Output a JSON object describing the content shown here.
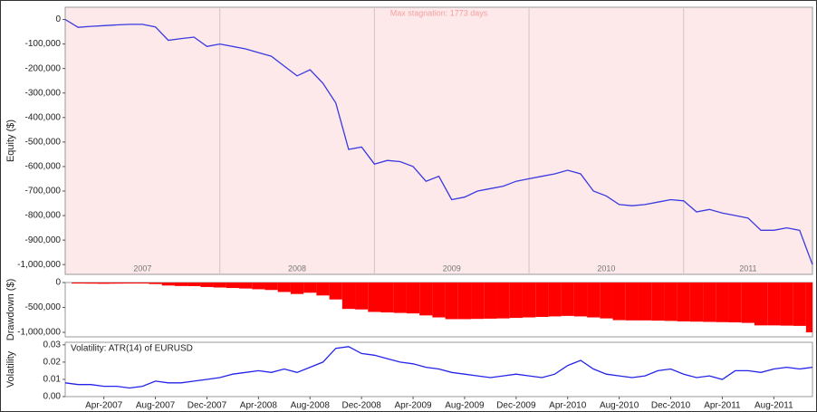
{
  "chart_data": [
    {
      "type": "line",
      "ylabel": "Equity ($)",
      "annotation": "Max stagnation: 1773 days",
      "year_labels": [
        "2007",
        "2008",
        "2009",
        "2010",
        "2011"
      ],
      "x": [
        "Jan-2007",
        "Feb-2007",
        "Mar-2007",
        "Apr-2007",
        "May-2007",
        "Jun-2007",
        "Jul-2007",
        "Aug-2007",
        "Sep-2007",
        "Oct-2007",
        "Nov-2007",
        "Dec-2007",
        "Jan-2008",
        "Feb-2008",
        "Mar-2008",
        "Apr-2008",
        "May-2008",
        "Jun-2008",
        "Jul-2008",
        "Aug-2008",
        "Sep-2008",
        "Oct-2008",
        "Nov-2008",
        "Dec-2008",
        "Jan-2009",
        "Feb-2009",
        "Mar-2009",
        "Apr-2009",
        "May-2009",
        "Jun-2009",
        "Jul-2009",
        "Aug-2009",
        "Sep-2009",
        "Oct-2009",
        "Nov-2009",
        "Dec-2009",
        "Jan-2010",
        "Feb-2010",
        "Mar-2010",
        "Apr-2010",
        "May-2010",
        "Jun-2010",
        "Jul-2010",
        "Aug-2010",
        "Sep-2010",
        "Oct-2010",
        "Nov-2010",
        "Dec-2010",
        "Jan-2011",
        "Feb-2011",
        "Mar-2011",
        "Apr-2011",
        "May-2011",
        "Jun-2011",
        "Jul-2011",
        "Aug-2011",
        "Sep-2011",
        "Oct-2011",
        "Nov-2011"
      ],
      "xlim": [
        "Jan-2007",
        "Nov-2011"
      ],
      "ylim": [
        -1040000,
        50000
      ],
      "yticks": [
        0,
        {
          "value": -100000,
          "label": "-100,000"
        },
        {
          "value": -200000,
          "label": "-200,000"
        },
        {
          "value": -300000,
          "label": "-300,000"
        },
        {
          "value": -400000,
          "label": "-400,000"
        },
        {
          "value": -500000,
          "label": "-500,000"
        },
        {
          "value": -600000,
          "label": "-600,000"
        },
        {
          "value": -700000,
          "label": "-700,000"
        },
        {
          "value": -800000,
          "label": "-800,000"
        },
        {
          "value": -900000,
          "label": "-900,000"
        },
        {
          "value": -1000000,
          "label": "-1,000,000"
        }
      ],
      "background": "#fde9ea",
      "series": [
        {
          "color": "#3a3ae0",
          "values": [
            0,
            -32000,
            -28000,
            -25000,
            -22000,
            -20000,
            -20000,
            -30000,
            -85000,
            -78000,
            -72000,
            -110000,
            -100000,
            -110000,
            -120000,
            -135000,
            -150000,
            -190000,
            -230000,
            -205000,
            -260000,
            -340000,
            -530000,
            -520000,
            -590000,
            -575000,
            -580000,
            -600000,
            -660000,
            -640000,
            -735000,
            -725000,
            -700000,
            -690000,
            -680000,
            -660000,
            -650000,
            -640000,
            -630000,
            -615000,
            -630000,
            -700000,
            -720000,
            -755000,
            -760000,
            -755000,
            -745000,
            -735000,
            -740000,
            -785000,
            -775000,
            -790000,
            -800000,
            -810000,
            -860000,
            -860000,
            -850000,
            -860000,
            -1000000
          ]
        }
      ]
    },
    {
      "type": "bar",
      "ylabel": "Drawdown ($)",
      "x": [
        "Jan-2007",
        "Feb-2007",
        "Mar-2007",
        "Apr-2007",
        "May-2007",
        "Jun-2007",
        "Jul-2007",
        "Aug-2007",
        "Sep-2007",
        "Oct-2007",
        "Nov-2007",
        "Dec-2007",
        "Jan-2008",
        "Feb-2008",
        "Mar-2008",
        "Apr-2008",
        "May-2008",
        "Jun-2008",
        "Jul-2008",
        "Aug-2008",
        "Sep-2008",
        "Oct-2008",
        "Nov-2008",
        "Dec-2008",
        "Jan-2009",
        "Feb-2009",
        "Mar-2009",
        "Apr-2009",
        "May-2009",
        "Jun-2009",
        "Jul-2009",
        "Aug-2009",
        "Sep-2009",
        "Oct-2009",
        "Nov-2009",
        "Dec-2009",
        "Jan-2010",
        "Feb-2010",
        "Mar-2010",
        "Apr-2010",
        "May-2010",
        "Jun-2010",
        "Jul-2010",
        "Aug-2010",
        "Sep-2010",
        "Oct-2010",
        "Nov-2010",
        "Dec-2010",
        "Jan-2011",
        "Feb-2011",
        "Mar-2011",
        "Apr-2011",
        "May-2011",
        "Jun-2011",
        "Jul-2011",
        "Aug-2011",
        "Sep-2011",
        "Oct-2011",
        "Nov-2011"
      ],
      "xlim": [
        "Jan-2007",
        "Nov-2011"
      ],
      "ylim": [
        -1090000,
        0
      ],
      "yticks": [
        0,
        {
          "value": -500000,
          "label": "-500,000"
        },
        {
          "value": -1000000,
          "label": "-1,000,000"
        }
      ],
      "series": [
        {
          "color": "#ff0000",
          "values": [
            0,
            -20000,
            -22000,
            -25000,
            -22000,
            -20000,
            -20000,
            -30000,
            -60000,
            -70000,
            -72000,
            -90000,
            -100000,
            -110000,
            -120000,
            -135000,
            -150000,
            -190000,
            -230000,
            -205000,
            -260000,
            -340000,
            -530000,
            -540000,
            -590000,
            -600000,
            -610000,
            -620000,
            -660000,
            -700000,
            -735000,
            -735000,
            -730000,
            -725000,
            -720000,
            -710000,
            -700000,
            -690000,
            -680000,
            -670000,
            -680000,
            -700000,
            -720000,
            -755000,
            -760000,
            -760000,
            -765000,
            -770000,
            -780000,
            -785000,
            -790000,
            -795000,
            -800000,
            -810000,
            -860000,
            -860000,
            -865000,
            -870000,
            -1000000
          ]
        }
      ]
    },
    {
      "type": "line",
      "ylabel": "Volatility",
      "title": "Volatility: ATR(14) of EURUSD",
      "x": [
        "Jan-2007",
        "Feb-2007",
        "Mar-2007",
        "Apr-2007",
        "May-2007",
        "Jun-2007",
        "Jul-2007",
        "Aug-2007",
        "Sep-2007",
        "Oct-2007",
        "Nov-2007",
        "Dec-2007",
        "Jan-2008",
        "Feb-2008",
        "Mar-2008",
        "Apr-2008",
        "May-2008",
        "Jun-2008",
        "Jul-2008",
        "Aug-2008",
        "Sep-2008",
        "Oct-2008",
        "Nov-2008",
        "Dec-2008",
        "Jan-2009",
        "Feb-2009",
        "Mar-2009",
        "Apr-2009",
        "May-2009",
        "Jun-2009",
        "Jul-2009",
        "Aug-2009",
        "Sep-2009",
        "Oct-2009",
        "Nov-2009",
        "Dec-2009",
        "Jan-2010",
        "Feb-2010",
        "Mar-2010",
        "Apr-2010",
        "May-2010",
        "Jun-2010",
        "Jul-2010",
        "Aug-2010",
        "Sep-2010",
        "Oct-2010",
        "Nov-2010",
        "Dec-2010",
        "Jan-2011",
        "Feb-2011",
        "Mar-2011",
        "Apr-2011",
        "May-2011",
        "Jun-2011",
        "Jul-2011",
        "Aug-2011",
        "Sep-2011",
        "Oct-2011",
        "Nov-2011"
      ],
      "xlim": [
        "Jan-2007",
        "Nov-2011"
      ],
      "ylim": [
        0,
        0.0315
      ],
      "xticks": [
        "Apr-2007",
        "Aug-2007",
        "Dec-2007",
        "Apr-2008",
        "Aug-2008",
        "Dec-2008",
        "Apr-2009",
        "Aug-2009",
        "Dec-2009",
        "Apr-2010",
        "Aug-2010",
        "Dec-2010",
        "Apr-2011",
        "Aug-2011"
      ],
      "yticks": [
        {
          "value": 0,
          "label": "0.00"
        },
        {
          "value": 0.01,
          "label": "0.01"
        },
        {
          "value": 0.02,
          "label": "0.02"
        },
        {
          "value": 0.03,
          "label": "0.03"
        }
      ],
      "series": [
        {
          "color": "#2424e8",
          "values": [
            0.008,
            0.007,
            0.007,
            0.006,
            0.006,
            0.005,
            0.006,
            0.009,
            0.008,
            0.008,
            0.009,
            0.01,
            0.011,
            0.013,
            0.014,
            0.015,
            0.014,
            0.016,
            0.014,
            0.017,
            0.02,
            0.028,
            0.029,
            0.025,
            0.024,
            0.022,
            0.02,
            0.019,
            0.017,
            0.016,
            0.014,
            0.013,
            0.012,
            0.011,
            0.012,
            0.013,
            0.012,
            0.011,
            0.013,
            0.018,
            0.021,
            0.016,
            0.013,
            0.012,
            0.011,
            0.012,
            0.015,
            0.016,
            0.013,
            0.011,
            0.012,
            0.01,
            0.015,
            0.015,
            0.014,
            0.016,
            0.017,
            0.016,
            0.017
          ]
        }
      ]
    }
  ]
}
